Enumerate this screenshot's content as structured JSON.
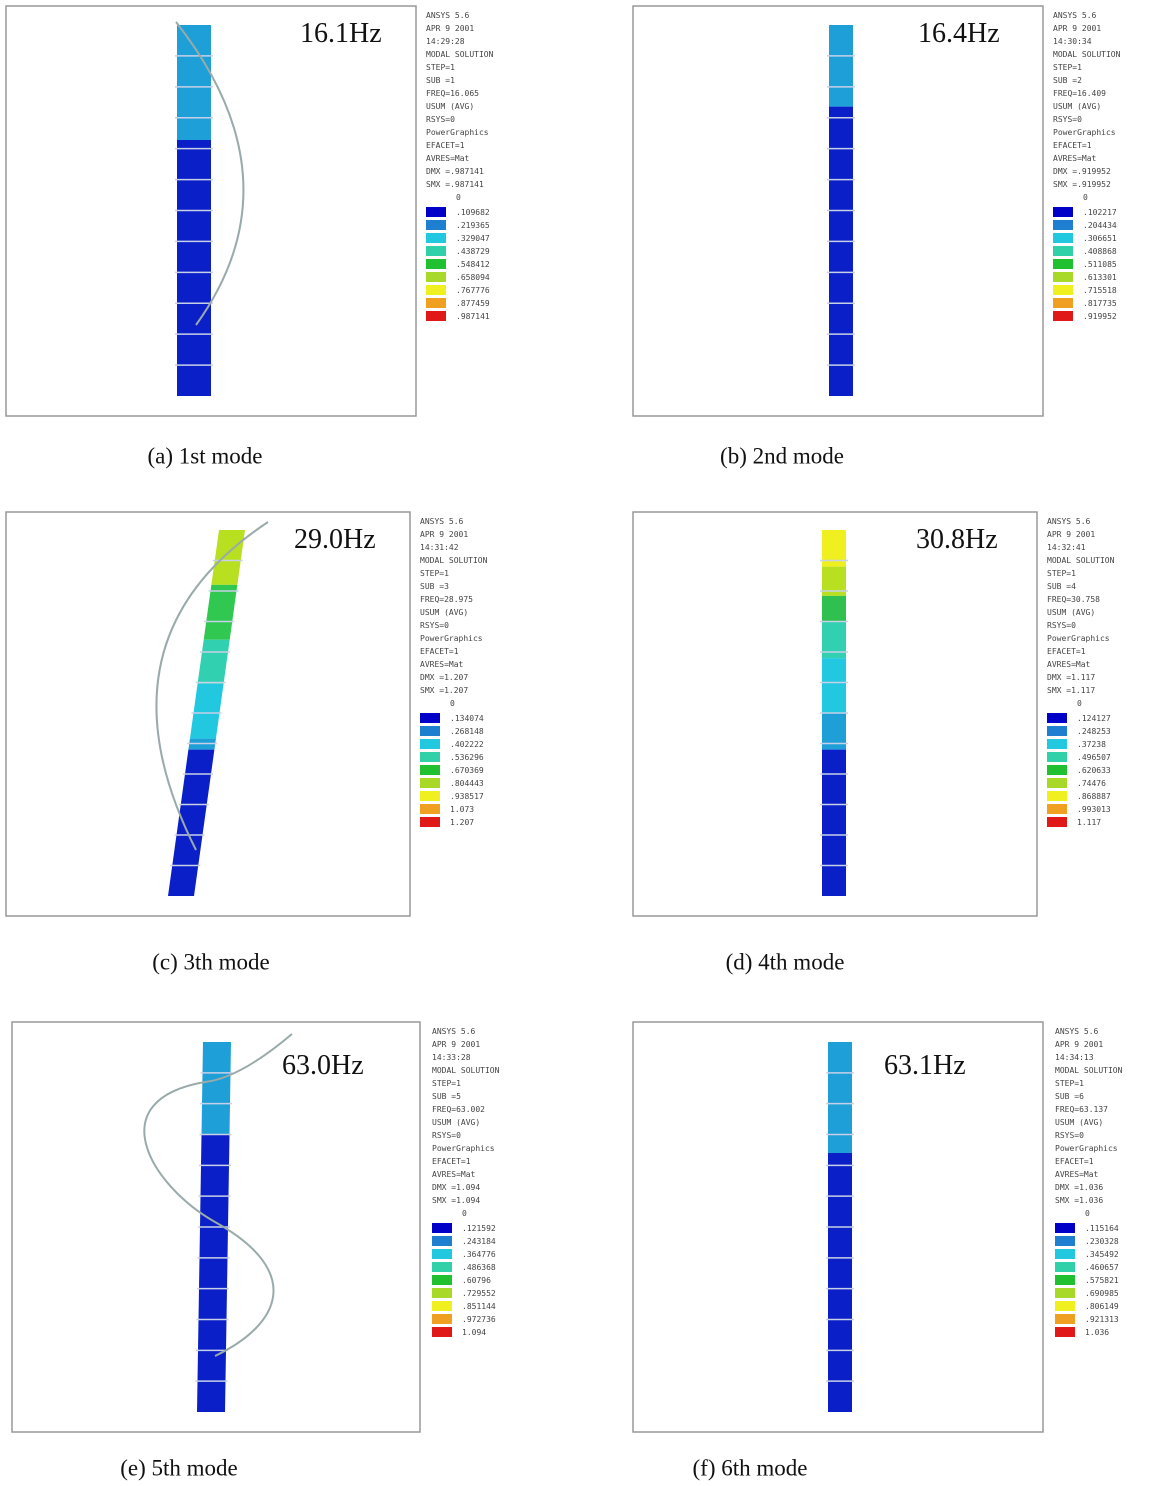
{
  "panels": [
    {
      "frequency": "16.1Hz",
      "caption": "(a) 1st mode",
      "info": [
        "ANSYS 5.6",
        "APR  9 2001",
        "14:29:28",
        "MODAL SOLUTION",
        "STEP=1",
        "SUB =1",
        "FREQ=16.065",
        "USUM     (AVG)",
        "RSYS=0",
        "PowerGraphics",
        "EFACET=1",
        "AVRES=Mat",
        "DMX =.987141",
        "SMX =.987141",
        "0"
      ],
      "legend": [
        ".109682",
        ".219365",
        ".329047",
        ".438729",
        ".548412",
        ".658094",
        ".767776",
        ".877459",
        ".987141"
      ]
    },
    {
      "frequency": "16.4Hz",
      "caption": "(b) 2nd mode",
      "info": [
        "ANSYS 5.6",
        "APR  9 2001",
        "14:30:34",
        "MODAL SOLUTION",
        "STEP=1",
        "SUB =2",
        "FREQ=16.409",
        "USUM     (AVG)",
        "RSYS=0",
        "PowerGraphics",
        "EFACET=1",
        "AVRES=Mat",
        "DMX =.919952",
        "SMX =.919952",
        "0"
      ],
      "legend": [
        ".102217",
        ".204434",
        ".306651",
        ".408868",
        ".511085",
        ".613301",
        ".715518",
        ".817735",
        ".919952"
      ]
    },
    {
      "frequency": "29.0Hz",
      "caption": "(c) 3th mode",
      "info": [
        "ANSYS 5.6",
        "APR  9 2001",
        "14:31:42",
        "MODAL SOLUTION",
        "STEP=1",
        "SUB =3",
        "FREQ=28.975",
        "USUM     (AVG)",
        "RSYS=0",
        "PowerGraphics",
        "EFACET=1",
        "AVRES=Mat",
        "DMX =1.207",
        "SMX =1.207",
        "0"
      ],
      "legend": [
        ".134074",
        ".268148",
        ".402222",
        ".536296",
        ".670369",
        ".804443",
        ".938517",
        "1.073",
        "1.207"
      ]
    },
    {
      "frequency": "30.8Hz",
      "caption": "(d) 4th mode",
      "info": [
        "ANSYS 5.6",
        "APR  9 2001",
        "14:32:41",
        "MODAL SOLUTION",
        "STEP=1",
        "SUB =4",
        "FREQ=30.758",
        "USUM     (AVG)",
        "RSYS=0",
        "PowerGraphics",
        "EFACET=1",
        "AVRES=Mat",
        "DMX =1.117",
        "SMX =1.117",
        "0"
      ],
      "legend": [
        ".124127",
        ".248253",
        ".37238",
        ".496507",
        ".620633",
        ".74476",
        ".868887",
        ".993013",
        "1.117"
      ]
    },
    {
      "frequency": "63.0Hz",
      "caption": "(e) 5th mode",
      "info": [
        "ANSYS 5.6",
        "APR  9 2001",
        "14:33:28",
        "MODAL SOLUTION",
        "STEP=1",
        "SUB =5",
        "FREQ=63.002",
        "USUM     (AVG)",
        "RSYS=0",
        "PowerGraphics",
        "EFACET=1",
        "AVRES=Mat",
        "DMX =1.094",
        "SMX =1.094",
        "0"
      ],
      "legend": [
        ".121592",
        ".243184",
        ".364776",
        ".486368",
        ".60796",
        ".729552",
        ".851144",
        ".972736",
        "1.094"
      ]
    },
    {
      "frequency": "63.1Hz",
      "caption": "(f) 6th mode",
      "info": [
        "ANSYS 5.6",
        "APR  9 2001",
        "14:34:13",
        "MODAL SOLUTION",
        "STEP=1",
        "SUB =6",
        "FREQ=63.137",
        "USUM     (AVG)",
        "RSYS=0",
        "PowerGraphics",
        "EFACET=1",
        "AVRES=Mat",
        "DMX =1.036",
        "SMX =1.036",
        "0"
      ],
      "legend": [
        ".115164",
        ".230328",
        ".345492",
        ".460657",
        ".575821",
        ".690985",
        ".806149",
        ".921313",
        "1.036"
      ]
    }
  ]
}
